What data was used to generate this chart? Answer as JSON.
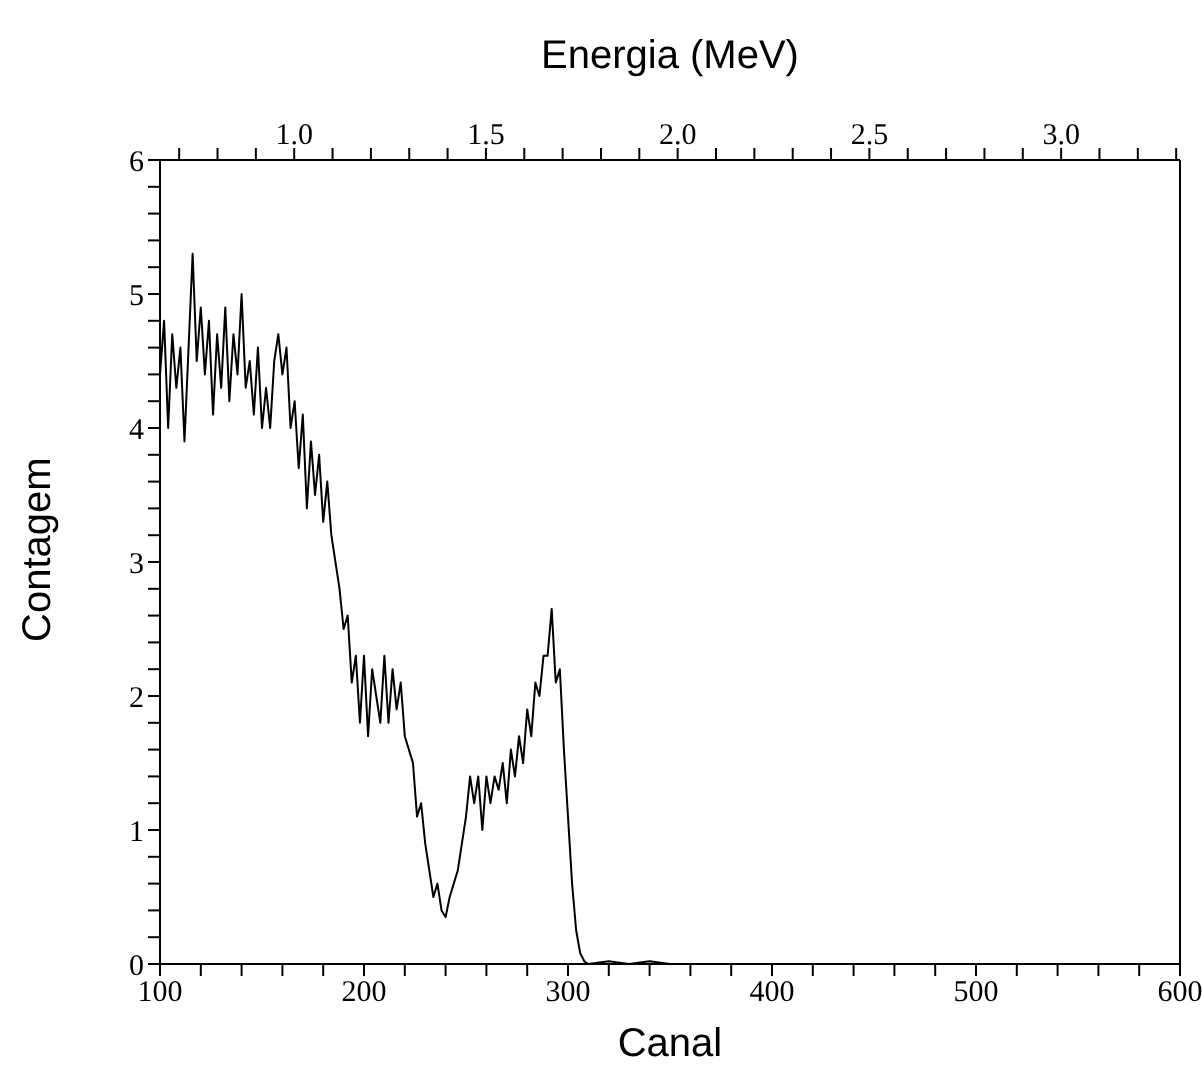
{
  "chart_data": {
    "type": "line",
    "xlabel": "Canal",
    "ylabel": "Contagem",
    "x2label": "Energia (MeV)",
    "xlim": [
      100,
      600
    ],
    "xticks": [
      100,
      {
        "value": 120,
        "label": null
      },
      {
        "value": 140,
        "label": null
      },
      {
        "value": 160,
        "label": null
      },
      {
        "value": 180,
        "label": null
      },
      200,
      {
        "value": 220,
        "label": null
      },
      {
        "value": 240,
        "label": null
      },
      {
        "value": 260,
        "label": null
      },
      {
        "value": 280,
        "label": null
      },
      300,
      {
        "value": 320,
        "label": null
      },
      {
        "value": 340,
        "label": null
      },
      {
        "value": 360,
        "label": null
      },
      {
        "value": 380,
        "label": null
      },
      400,
      {
        "value": 420,
        "label": null
      },
      {
        "value": 440,
        "label": null
      },
      {
        "value": 460,
        "label": null
      },
      {
        "value": 480,
        "label": null
      },
      500,
      {
        "value": 520,
        "label": null
      },
      {
        "value": 540,
        "label": null
      },
      {
        "value": 560,
        "label": null
      },
      {
        "value": 580,
        "label": null
      },
      600
    ],
    "x2lim": [
      0.65,
      3.31
    ],
    "x2ticks": [
      {
        "value": 0.7,
        "label": null
      },
      {
        "value": 0.8,
        "label": null
      },
      {
        "value": 0.9,
        "label": null
      },
      {
        "value": 1.0,
        "label": "1.0"
      },
      {
        "value": 1.1,
        "label": null
      },
      {
        "value": 1.2,
        "label": null
      },
      {
        "value": 1.3,
        "label": null
      },
      {
        "value": 1.4,
        "label": null
      },
      {
        "value": 1.5,
        "label": "1.5"
      },
      {
        "value": 1.6,
        "label": null
      },
      {
        "value": 1.7,
        "label": null
      },
      {
        "value": 1.8,
        "label": null
      },
      {
        "value": 1.9,
        "label": null
      },
      {
        "value": 2.0,
        "label": "2.0"
      },
      {
        "value": 2.1,
        "label": null
      },
      {
        "value": 2.2,
        "label": null
      },
      {
        "value": 2.3,
        "label": null
      },
      {
        "value": 2.4,
        "label": null
      },
      {
        "value": 2.5,
        "label": "2.5"
      },
      {
        "value": 2.6,
        "label": null
      },
      {
        "value": 2.7,
        "label": null
      },
      {
        "value": 2.8,
        "label": null
      },
      {
        "value": 2.9,
        "label": null
      },
      {
        "value": 3.0,
        "label": "3.0"
      },
      {
        "value": 3.1,
        "label": null
      },
      {
        "value": 3.2,
        "label": null
      },
      {
        "value": 3.3,
        "label": null
      }
    ],
    "ylim": [
      0,
      6
    ],
    "yticks": [
      0,
      {
        "value": 0.2,
        "label": null
      },
      {
        "value": 0.4,
        "label": null
      },
      {
        "value": 0.6,
        "label": null
      },
      {
        "value": 0.8,
        "label": null
      },
      1,
      {
        "value": 1.2,
        "label": null
      },
      {
        "value": 1.4,
        "label": null
      },
      {
        "value": 1.6,
        "label": null
      },
      {
        "value": 1.8,
        "label": null
      },
      2,
      {
        "value": 2.2,
        "label": null
      },
      {
        "value": 2.4,
        "label": null
      },
      {
        "value": 2.6,
        "label": null
      },
      {
        "value": 2.8,
        "label": null
      },
      3,
      {
        "value": 3.2,
        "label": null
      },
      {
        "value": 3.4,
        "label": null
      },
      {
        "value": 3.6,
        "label": null
      },
      {
        "value": 3.8,
        "label": null
      },
      4,
      {
        "value": 4.2,
        "label": null
      },
      {
        "value": 4.4,
        "label": null
      },
      {
        "value": 4.6,
        "label": null
      },
      {
        "value": 4.8,
        "label": null
      },
      5,
      {
        "value": 5.2,
        "label": null
      },
      {
        "value": 5.4,
        "label": null
      },
      {
        "value": 5.6,
        "label": null
      },
      {
        "value": 5.8,
        "label": null
      },
      6
    ],
    "marker": "none",
    "line_style": "solid",
    "x": [
      100,
      102,
      104,
      106,
      108,
      110,
      112,
      114,
      116,
      118,
      120,
      122,
      124,
      126,
      128,
      130,
      132,
      134,
      136,
      138,
      140,
      142,
      144,
      146,
      148,
      150,
      152,
      154,
      156,
      158,
      160,
      162,
      164,
      166,
      168,
      170,
      172,
      174,
      176,
      178,
      180,
      182,
      184,
      186,
      188,
      190,
      192,
      194,
      196,
      198,
      200,
      202,
      204,
      206,
      208,
      210,
      212,
      214,
      216,
      218,
      220,
      222,
      224,
      226,
      228,
      230,
      232,
      234,
      236,
      238,
      240,
      242,
      244,
      246,
      248,
      250,
      252,
      254,
      256,
      258,
      260,
      262,
      264,
      266,
      268,
      270,
      272,
      274,
      276,
      278,
      280,
      282,
      284,
      286,
      288,
      290,
      292,
      294,
      296,
      298,
      300,
      302,
      304,
      306,
      308,
      310,
      320,
      330,
      340,
      350,
      360
    ],
    "series": [
      {
        "color": "#000000",
        "values": [
          4.4,
          4.8,
          4.0,
          4.7,
          4.3,
          4.6,
          3.9,
          4.6,
          5.3,
          4.5,
          4.9,
          4.4,
          4.8,
          4.1,
          4.7,
          4.3,
          4.9,
          4.2,
          4.7,
          4.4,
          5.0,
          4.3,
          4.5,
          4.1,
          4.6,
          4.0,
          4.3,
          4.0,
          4.5,
          4.7,
          4.4,
          4.6,
          4.0,
          4.2,
          3.7,
          4.1,
          3.4,
          3.9,
          3.5,
          3.8,
          3.3,
          3.6,
          3.2,
          3.0,
          2.8,
          2.5,
          2.6,
          2.1,
          2.3,
          1.8,
          2.3,
          1.7,
          2.2,
          2.0,
          1.8,
          2.3,
          1.8,
          2.2,
          1.9,
          2.1,
          1.7,
          1.6,
          1.5,
          1.1,
          1.2,
          0.9,
          0.7,
          0.5,
          0.6,
          0.4,
          0.35,
          0.5,
          0.6,
          0.7,
          0.9,
          1.1,
          1.4,
          1.2,
          1.4,
          1.0,
          1.4,
          1.2,
          1.4,
          1.3,
          1.5,
          1.2,
          1.6,
          1.4,
          1.7,
          1.5,
          1.9,
          1.7,
          2.1,
          2.0,
          2.3,
          2.3,
          2.65,
          2.1,
          2.2,
          1.6,
          1.1,
          0.6,
          0.25,
          0.08,
          0.02,
          0.0,
          0.02,
          0.0,
          0.02,
          0.0,
          0.0
        ]
      }
    ]
  }
}
